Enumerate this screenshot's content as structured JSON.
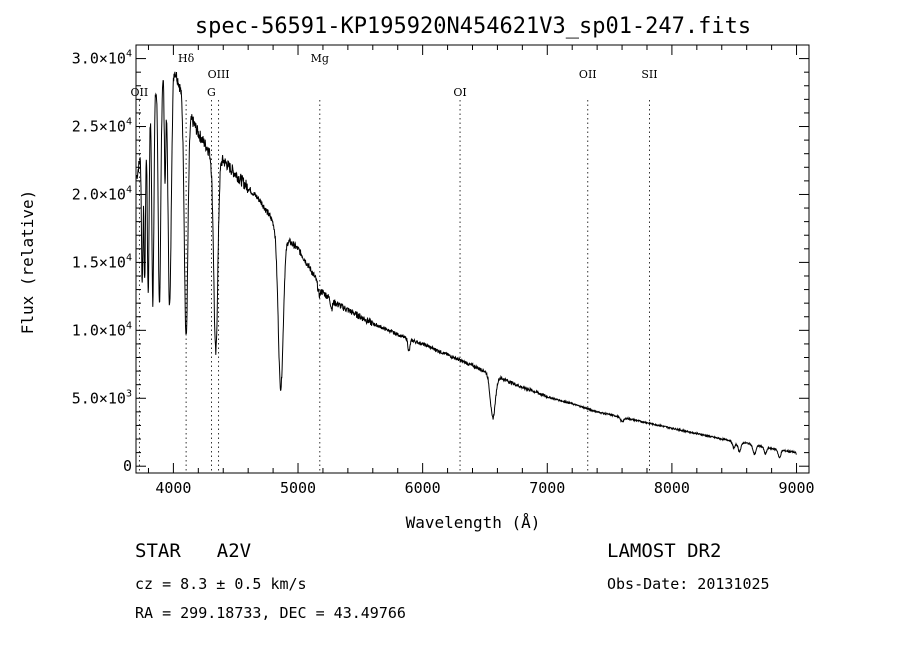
{
  "chart_data": {
    "type": "line",
    "title": "spec-56591-KP195920N454621V3_sp01-247.fits",
    "xlabel": "Wavelength (Å)",
    "ylabel": "Flux (relative)",
    "xlim": [
      3700,
      9100
    ],
    "ylim": [
      -500,
      31000
    ],
    "xticks": [
      {
        "value": 4000,
        "label": "4000"
      },
      {
        "value": 5000,
        "label": "5000"
      },
      {
        "value": 6000,
        "label": "6000"
      },
      {
        "value": 7000,
        "label": "7000"
      },
      {
        "value": 8000,
        "label": "8000"
      },
      {
        "value": 9000,
        "label": "9000"
      }
    ],
    "yticks": [
      {
        "value": 0,
        "mantissa": "0",
        "exp": ""
      },
      {
        "value": 5000,
        "mantissa": "5.0×10",
        "exp": "3"
      },
      {
        "value": 10000,
        "mantissa": "1.0×10",
        "exp": "4"
      },
      {
        "value": 15000,
        "mantissa": "1.5×10",
        "exp": "4"
      },
      {
        "value": 20000,
        "mantissa": "2.0×10",
        "exp": "4"
      },
      {
        "value": 25000,
        "mantissa": "2.5×10",
        "exp": "4"
      },
      {
        "value": 30000,
        "mantissa": "3.0×10",
        "exp": "4"
      }
    ],
    "lines": [
      {
        "label": "OII",
        "wavelength": 3727,
        "row": 2
      },
      {
        "label": "Hδ",
        "wavelength": 4102,
        "row": 0
      },
      {
        "label": "OIII",
        "wavelength": 4363,
        "row": 1
      },
      {
        "label": "G",
        "wavelength": 4305,
        "row": 2
      },
      {
        "label": "Mg",
        "wavelength": 5175,
        "row": 0
      },
      {
        "label": "OI",
        "wavelength": 6300,
        "row": 2
      },
      {
        "label": "OII",
        "wavelength": 7325,
        "row": 1
      },
      {
        "label": "SII",
        "wavelength": 7820,
        "row": 1
      }
    ],
    "continuum": {
      "x": [
        3700,
        3800,
        3900,
        4000,
        4100,
        4200,
        4300,
        4400,
        4500,
        4600,
        4700,
        4800,
        4900,
        5000,
        5100,
        5200,
        5300,
        5400,
        5500,
        5600,
        5700,
        5800,
        5900,
        6000,
        6100,
        6200,
        6300,
        6400,
        6500,
        6600,
        6700,
        6800,
        6900,
        7000,
        7200,
        7400,
        7600,
        7800,
        8000,
        8200,
        8400,
        8600,
        8800,
        9000
      ],
      "y": [
        21000,
        26000,
        29000,
        29500,
        26500,
        24500,
        23000,
        22500,
        21500,
        20500,
        19500,
        18000,
        16800,
        16000,
        14500,
        12800,
        12000,
        11500,
        11000,
        10500,
        10100,
        9700,
        9300,
        9000,
        8600,
        8200,
        7800,
        7400,
        7000,
        6600,
        6200,
        5800,
        5500,
        5100,
        4600,
        4000,
        3600,
        3200,
        2800,
        2400,
        2000,
        1700,
        1300,
        1000
      ]
    },
    "absorption": [
      {
        "center": 3750,
        "width": 6,
        "depth": 10000
      },
      {
        "center": 3770,
        "width": 6,
        "depth": 11000
      },
      {
        "center": 3798,
        "width": 7,
        "depth": 13000
      },
      {
        "center": 3835,
        "width": 8,
        "depth": 15000
      },
      {
        "center": 3889,
        "width": 10,
        "depth": 17000
      },
      {
        "center": 3933,
        "width": 6,
        "depth": 8000
      },
      {
        "center": 3970,
        "width": 13,
        "depth": 17500
      },
      {
        "center": 4102,
        "width": 14,
        "depth": 17000
      },
      {
        "center": 4340,
        "width": 16,
        "depth": 14500
      },
      {
        "center": 4861,
        "width": 20,
        "depth": 11500
      },
      {
        "center": 5170,
        "width": 10,
        "depth": 700
      },
      {
        "center": 5270,
        "width": 8,
        "depth": 600
      },
      {
        "center": 5890,
        "width": 8,
        "depth": 900
      },
      {
        "center": 6563,
        "width": 20,
        "depth": 3200
      },
      {
        "center": 7600,
        "width": 15,
        "depth": 300
      },
      {
        "center": 8498,
        "width": 12,
        "depth": 500
      },
      {
        "center": 8542,
        "width": 12,
        "depth": 700
      },
      {
        "center": 8662,
        "width": 12,
        "depth": 700
      },
      {
        "center": 8750,
        "width": 10,
        "depth": 500
      },
      {
        "center": 8863,
        "width": 10,
        "depth": 600
      },
      {
        "center": 9015,
        "width": 10,
        "depth": 400
      }
    ]
  },
  "info": {
    "star_label": "STAR",
    "spectral_type": "A2V",
    "cz": "cz = 8.3 ± 0.5 km/s",
    "radec": "RA = 299.18733, DEC =  43.49766",
    "survey": "LAMOST DR2",
    "obs_date": "Obs-Date: 20131025"
  }
}
